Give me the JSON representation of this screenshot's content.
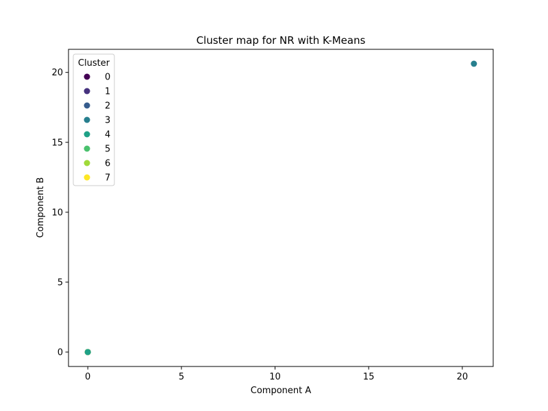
{
  "chart_data": {
    "type": "scatter",
    "title": "Cluster map for NR with K-Means",
    "xlabel": "Component A",
    "ylabel": "Component B",
    "xlim": [
      -1.03,
      21.65
    ],
    "ylim": [
      -1.03,
      21.65
    ],
    "xticks": [
      0,
      5,
      10,
      15,
      20
    ],
    "yticks": [
      0,
      5,
      10,
      15,
      20
    ],
    "grid": false,
    "legend": {
      "title": "Cluster",
      "location": "top-left",
      "entries": [
        "0",
        "1",
        "2",
        "3",
        "4",
        "5",
        "6",
        "7"
      ],
      "colors": [
        "#440154",
        "#46327e",
        "#365c8d",
        "#277f8e",
        "#1fa187",
        "#4ac16d",
        "#a0da39",
        "#fde725"
      ]
    },
    "series": [
      {
        "name": "0",
        "color": "#440154",
        "points": [
          [
            0,
            0
          ]
        ]
      },
      {
        "name": "1",
        "color": "#46327e",
        "points": [
          [
            0,
            0
          ]
        ]
      },
      {
        "name": "2",
        "color": "#365c8d",
        "points": [
          [
            0,
            0
          ]
        ]
      },
      {
        "name": "5",
        "color": "#4ac16d",
        "points": [
          [
            0,
            0
          ]
        ]
      },
      {
        "name": "6",
        "color": "#a0da39",
        "points": [
          [
            0,
            0
          ]
        ]
      },
      {
        "name": "7",
        "color": "#fde725",
        "points": [
          [
            0,
            0
          ]
        ]
      },
      {
        "name": "4",
        "color": "#1fa187",
        "points": [
          [
            0,
            0
          ]
        ]
      },
      {
        "name": "3",
        "color": "#277f8e",
        "points": [
          [
            20.62,
            20.62
          ]
        ]
      }
    ]
  }
}
